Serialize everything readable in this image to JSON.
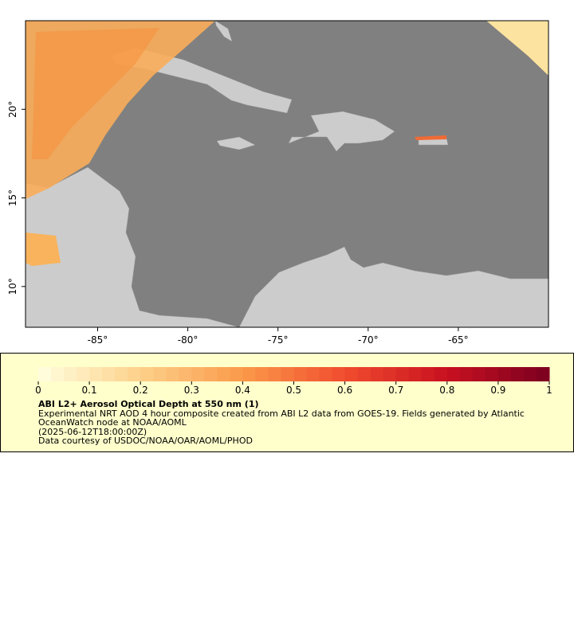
{
  "map": {
    "xlim": [
      -89,
      -60
    ],
    "ylim": [
      7.7,
      25
    ],
    "xticks": [
      {
        "value": -85,
        "label": "-85°"
      },
      {
        "value": -80,
        "label": "-80°"
      },
      {
        "value": -75,
        "label": "-75°"
      },
      {
        "value": -70,
        "label": "-70°"
      },
      {
        "value": -65,
        "label": "-65°"
      }
    ],
    "yticks": [
      {
        "value": 10,
        "label": "10°"
      },
      {
        "value": 15,
        "label": "15°"
      },
      {
        "value": 20,
        "label": "20°"
      }
    ]
  },
  "colorbar": {
    "range": [
      0,
      1
    ],
    "ticks": [
      0,
      0.1,
      0.2,
      0.3,
      0.4,
      0.5,
      0.6,
      0.7,
      0.8,
      0.9,
      1
    ],
    "bins": 40,
    "colors": [
      "#ffffe0",
      "#fdd08a",
      "#fb9a4a",
      "#f04c2e",
      "#c81020",
      "#7a0020"
    ]
  },
  "legend": {
    "title": "ABI L2+ Aerosol Optical Depth at 550 nm (1)",
    "description": "Experimental NRT AOD 4 hour composite created from ABI L2 data from GOES-19. Fields generated by Atlantic OceanWatch node at NOAA/AOML",
    "time": "(2025-06-12T18:00:00Z)",
    "credit": "Data courtesy of USDOC/NOAA/OAR/AOML/PHOD"
  }
}
